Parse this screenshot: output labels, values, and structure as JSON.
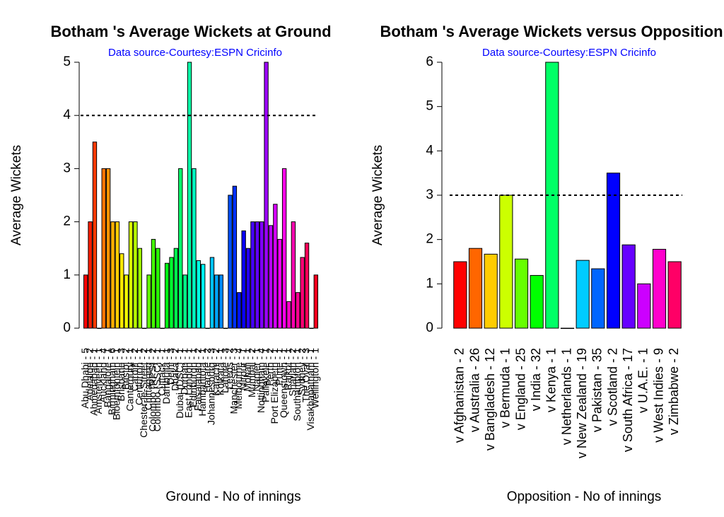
{
  "chart_data": [
    {
      "type": "bar",
      "title": "Botham 's Average Wickets at Ground",
      "subtitle": "Data source-Courtesy:ESPN Cricinfo",
      "x_label": "Ground - No of innings",
      "y_label": "Average Wickets",
      "palette": "rainbow",
      "hline": 4,
      "ylim": [
        0,
        5
      ],
      "yticks": [
        0,
        1,
        2,
        3,
        4,
        5
      ],
      "categories": [
        "Abu Dhabi - 5",
        "Adelaide - 2",
        "Ahmedabad - 1",
        "Amstelveen - 1",
        "Auckland - 4",
        "Bangalore - 1",
        "Birmingham - 6",
        "Bloemfontein - 1",
        "Brisbane - 3",
        "Bristol - 2",
        "Canterbury - 1",
        "Cardiff - 2",
        "Centurion - 1",
        "Chester-le-Street - 2",
        "Chittagong - 1",
        "Colombo (RPS) - 2",
        "Colombo (SSC) - 1",
        "Cuttack - 1",
        "Dambulla - 1",
        "Delhi - 3",
        "Dhaka - 2",
        "Dubai (DSC) - 1",
        "Durban - 1",
        "East London - 1",
        "Edinburgh - 1",
        "Faisalabad - 2",
        "Hambantota - 1",
        "Harare - 2",
        "Johannesburg - 3",
        "Karachi - 2",
        "Kolkata - 1",
        "Lahore - 3",
        "Leeds - 2",
        "Manchester - 3",
        "Melbourne - 4",
        "Mirpur - 1",
        "Mohali - 1",
        "Mumbai - 2",
        "Napier - 1",
        "Nottingham - 4",
        "Pallekele - 1",
        "Perth - 2",
        "Port Elizabeth - 1",
        "Pune - 1",
        "Queenstown - 1",
        "Rajkot - 1",
        "Sharjah - 2",
        "Southampton - 1",
        "Sydney - 2",
        "The Oval - 3",
        "Visakhapatnam - 1",
        "Wellington - 1"
      ],
      "values": [
        1.0,
        2.0,
        3.5,
        0,
        3.0,
        3.0,
        2.0,
        2.0,
        1.4,
        1.0,
        2.0,
        2.0,
        1.5,
        0,
        1.0,
        1.67,
        1.5,
        0,
        1.22,
        1.33,
        1.5,
        3.0,
        1.0,
        5.0,
        3.0,
        1.27,
        1.2,
        0,
        1.33,
        1.0,
        1.0,
        0,
        2.5,
        2.67,
        0.67,
        1.83,
        1.5,
        2.0,
        2.0,
        2.0,
        5.0,
        1.93,
        2.33,
        1.67,
        3.0,
        0.5,
        2.0,
        0.67,
        1.33,
        1.6,
        0,
        1.0
      ]
    },
    {
      "type": "bar",
      "title": "Botham 's Average Wickets versus Opposition",
      "subtitle": "Data source-Courtesy:ESPN Cricinfo",
      "x_label": "Opposition - No of innings",
      "y_label": "Average Wickets",
      "palette": "rainbow",
      "hline": 3,
      "ylim": [
        0,
        6
      ],
      "yticks": [
        0,
        1,
        2,
        3,
        4,
        5,
        6
      ],
      "categories": [
        "v Afghanistan - 2",
        "v Australia - 26",
        "v Bangladesh - 12",
        "v Bermuda - 1",
        "v England - 25",
        "v India - 32",
        "v Kenya - 1",
        "v Netherlands - 1",
        "v New Zealand - 19",
        "v Pakistan - 35",
        "v Scotland - 2",
        "v South Africa - 17",
        "v U.A.E. - 1",
        "v West Indies - 9",
        "v Zimbabwe - 2"
      ],
      "values": [
        1.5,
        1.8,
        1.67,
        3.0,
        1.56,
        1.19,
        6.0,
        0,
        1.53,
        1.34,
        3.5,
        1.88,
        1.0,
        1.78,
        1.5
      ]
    }
  ]
}
